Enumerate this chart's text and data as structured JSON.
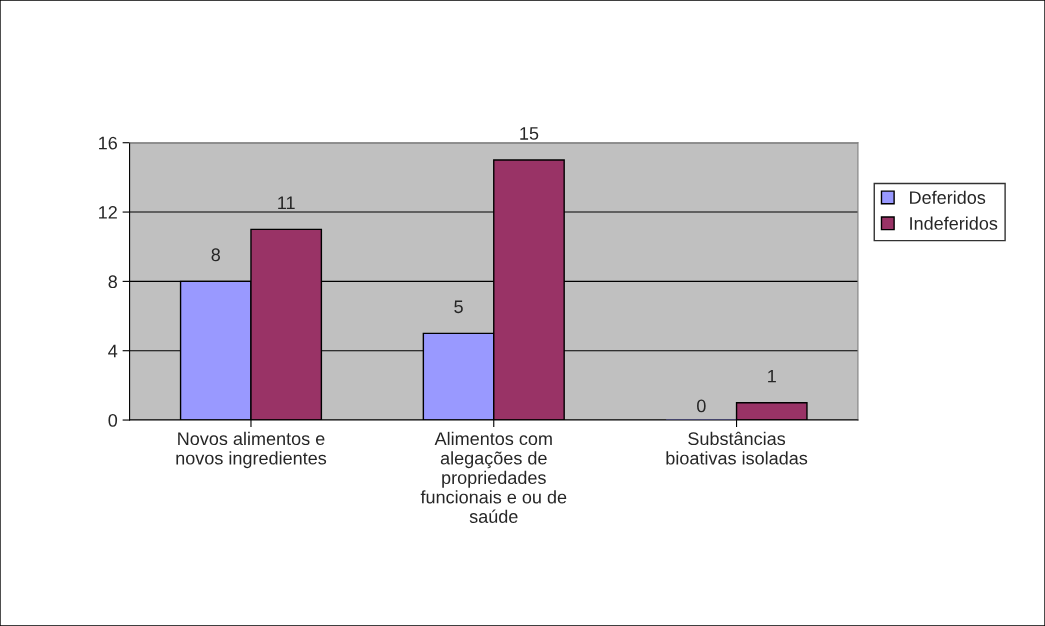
{
  "chart_data": {
    "type": "bar",
    "categories": [
      "Novos alimentos e novos ingredientes",
      "Alimentos com alegações de propriedades funcionais e ou de saúde",
      "Substâncias bioativas isoladas"
    ],
    "series": [
      {
        "name": "Deferidos",
        "color": "#9999ff",
        "values": [
          8,
          5,
          0
        ]
      },
      {
        "name": "Indeferidos",
        "color": "#993366",
        "values": [
          11,
          15,
          1
        ]
      }
    ],
    "ylim": [
      0,
      16
    ],
    "yticks": [
      0,
      4,
      8,
      12,
      16
    ],
    "grid": "y",
    "legend": "right",
    "data_labels": true
  }
}
